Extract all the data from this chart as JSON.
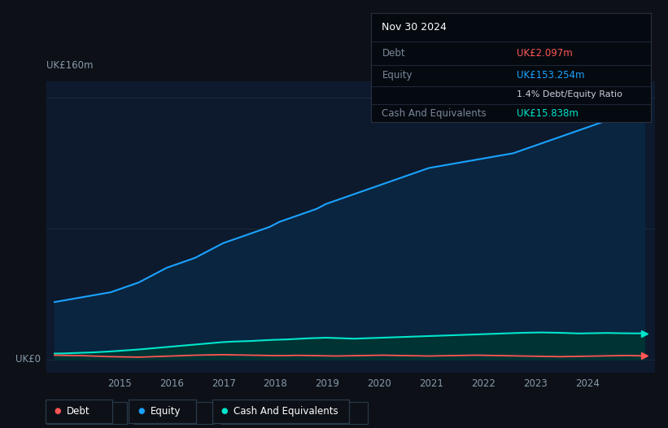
{
  "bg_color": "#0d1117",
  "plot_bg_color": "#0d1a2e",
  "title_label": "UK£160m",
  "zero_label": "UK£0",
  "x_ticks": [
    2015,
    2016,
    2017,
    2018,
    2019,
    2020,
    2021,
    2022,
    2023,
    2024
  ],
  "equity_color": "#1aa3ff",
  "equity_fill": "#0a2540",
  "debt_color": "#ff5555",
  "cash_color": "#00e5cc",
  "cash_fill": "#003333",
  "tooltip_bg": "#050a10",
  "tooltip_title": "Nov 30 2024",
  "tooltip_debt_label": "Debt",
  "tooltip_debt_value": "UK£2.097m",
  "tooltip_equity_label": "Equity",
  "tooltip_equity_value": "UK£153.254m",
  "tooltip_ratio": "1.4% Debt/Equity Ratio",
  "tooltip_cash_label": "Cash And Equivalents",
  "tooltip_cash_value": "UK£15.838m",
  "legend_labels": [
    "Debt",
    "Equity",
    "Cash And Equivalents"
  ],
  "equity_data": [
    35,
    36,
    37,
    38,
    39,
    40,
    41,
    43,
    45,
    47,
    50,
    53,
    56,
    58,
    60,
    62,
    65,
    68,
    71,
    73,
    75,
    77,
    79,
    81,
    84,
    86,
    88,
    90,
    92,
    95,
    97,
    99,
    101,
    103,
    105,
    107,
    109,
    111,
    113,
    115,
    117,
    118,
    119,
    120,
    121,
    122,
    123,
    124,
    125,
    126,
    128,
    130,
    132,
    134,
    136,
    138,
    140,
    142,
    144,
    146,
    148,
    150,
    152,
    153.254
  ],
  "debt_data": [
    2.5,
    2.4,
    2.3,
    2.2,
    2.0,
    1.8,
    1.6,
    1.5,
    1.4,
    1.3,
    1.5,
    1.7,
    1.9,
    2.1,
    2.3,
    2.5,
    2.6,
    2.7,
    2.8,
    2.7,
    2.6,
    2.5,
    2.4,
    2.3,
    2.2,
    2.3,
    2.4,
    2.3,
    2.2,
    2.1,
    2.0,
    2.1,
    2.2,
    2.3,
    2.4,
    2.5,
    2.4,
    2.3,
    2.2,
    2.1,
    2.0,
    2.1,
    2.2,
    2.3,
    2.4,
    2.5,
    2.4,
    2.3,
    2.2,
    2.1,
    2.0,
    1.9,
    1.8,
    1.7,
    1.6,
    1.7,
    1.8,
    1.9,
    2.0,
    2.1,
    2.2,
    2.3,
    2.2,
    2.097
  ],
  "cash_data": [
    3.5,
    3.6,
    3.8,
    4.0,
    4.2,
    4.5,
    4.8,
    5.2,
    5.6,
    6.0,
    6.5,
    7.0,
    7.5,
    8.0,
    8.5,
    9.0,
    9.5,
    10.0,
    10.5,
    10.8,
    11.0,
    11.2,
    11.5,
    11.8,
    12.0,
    12.2,
    12.5,
    12.8,
    13.0,
    13.2,
    13.0,
    12.8,
    12.6,
    12.8,
    13.0,
    13.2,
    13.4,
    13.6,
    13.8,
    14.0,
    14.2,
    14.4,
    14.6,
    14.8,
    15.0,
    15.2,
    15.4,
    15.6,
    15.8,
    16.0,
    16.2,
    16.3,
    16.4,
    16.3,
    16.2,
    16.0,
    15.8,
    15.9,
    16.0,
    16.1,
    16.0,
    15.9,
    15.85,
    15.838
  ],
  "ylim": [
    -8,
    170
  ],
  "xlim_start": 2013.6,
  "xlim_end": 2025.3,
  "n_points": 64,
  "x_start": 2013.75,
  "x_end": 2025.1
}
